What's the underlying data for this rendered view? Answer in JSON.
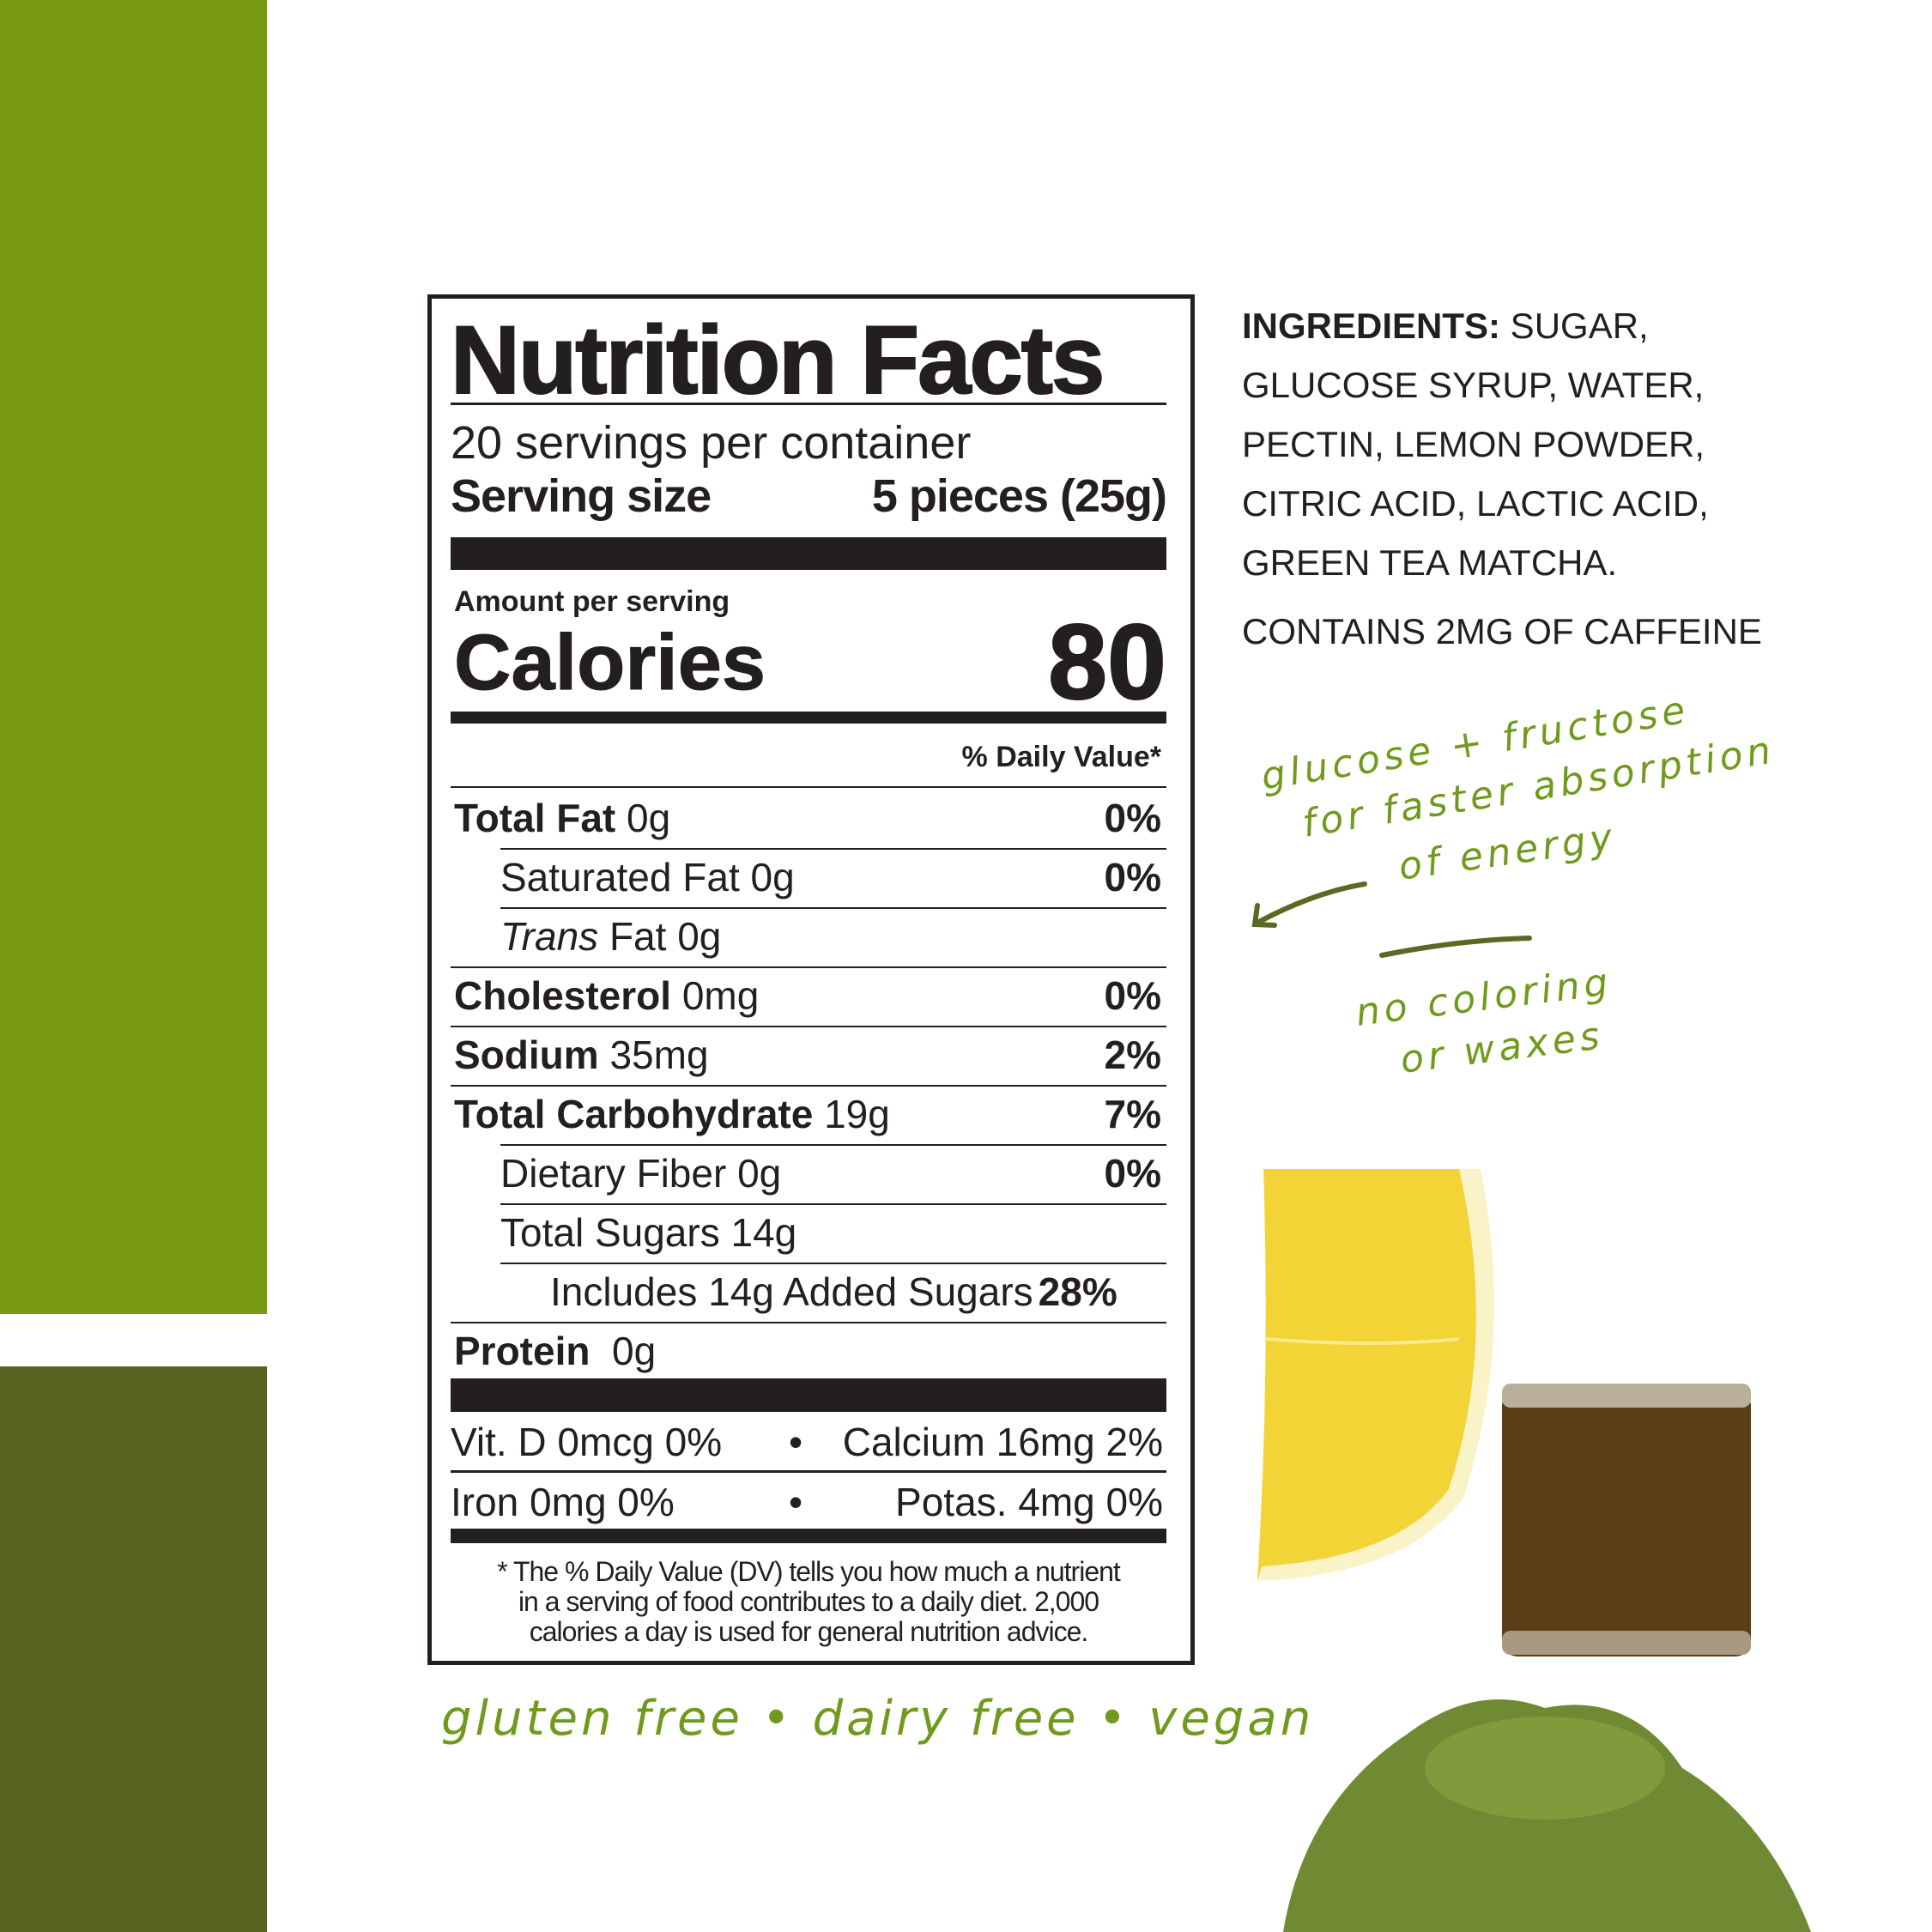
{
  "colors": {
    "brand_green": "#789a12",
    "dark_green": "#5a6220",
    "hand_green": "#6f9a1c",
    "text": "#231f20"
  },
  "nutrition": {
    "title": "Nutrition Facts",
    "servings": "20 servings per container",
    "serving_size_label": "Serving size",
    "serving_size_value": "5 pieces (25g)",
    "amount_per_serving": "Amount per serving",
    "calories_label": "Calories",
    "calories_value": "80",
    "daily_value_header": "% Daily Value*",
    "rows": [
      {
        "name": "Total Fat",
        "amount": "0g",
        "dv": "0%"
      },
      {
        "name": "Saturated Fat",
        "amount": "0g",
        "dv": "0%"
      },
      {
        "name": "Trans",
        "name_suffix": "Fat",
        "amount": "0g",
        "dv": ""
      },
      {
        "name": "Cholesterol",
        "amount": "0mg",
        "dv": "0%"
      },
      {
        "name": "Sodium",
        "amount": "35mg",
        "dv": "2%"
      },
      {
        "name": "Total Carbohydrate",
        "amount": "19g",
        "dv": "7%"
      },
      {
        "name": "Dietary Fiber",
        "amount": "0g",
        "dv": "0%"
      },
      {
        "name": "Total Sugars",
        "amount": "14g",
        "dv": ""
      },
      {
        "name": "Includes 14g Added Sugars",
        "amount": "",
        "dv": "28%"
      },
      {
        "name": "Protein",
        "amount": "0g",
        "dv": ""
      }
    ],
    "vitamins": [
      {
        "left": "Vit. D 0mcg 0%",
        "right": "Calcium 16mg 2%"
      },
      {
        "left": "Iron 0mg 0%",
        "right": "Potas. 4mg 0%"
      }
    ],
    "bullet": "•",
    "footnote_1": "* The % Daily Value (DV) tells you how much a nutrient",
    "footnote_2": "in a serving of food contributes to a daily diet. 2,000",
    "footnote_3": "calories a day is used for general nutrition advice."
  },
  "ingredients": {
    "label": "INGREDIENTS:",
    "line1": " SUGAR,",
    "line2": "GLUCOSE SYRUP, WATER,",
    "line3": "PECTIN, LEMON POWDER,",
    "line4": "CITRIC ACID, LACTIC ACID,",
    "line5": "GREEN TEA MATCHA.",
    "caffeine": "CONTAINS 2MG OF CAFFEINE"
  },
  "notes": {
    "n1": "glucose + fructose",
    "n2": "for faster absorption",
    "n3": "of energy",
    "n4": "no coloring",
    "n5": "or waxes",
    "claims": "gluten free • dairy free • vegan"
  }
}
